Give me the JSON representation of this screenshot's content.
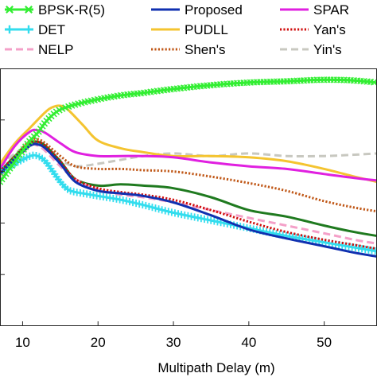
{
  "chart_data": {
    "type": "line",
    "title": "",
    "xlabel": "Multipath Delay (m)",
    "ylabel": "",
    "xlim": [
      7,
      57
    ],
    "ylim": [
      0,
      100
    ],
    "x_ticks": [
      10,
      20,
      30,
      40,
      50
    ],
    "x_tick_labels": [
      "10",
      "20",
      "30",
      "40",
      "50"
    ],
    "grid": false,
    "legend_position": "top",
    "series": [
      {
        "name": "BPSK-R(5)",
        "color": "#33ee33",
        "style": "solid-x-markers",
        "x": [
          7,
          8,
          9,
          10,
          11,
          12,
          13,
          14,
          15,
          17,
          20,
          23,
          26,
          30,
          35,
          40,
          45,
          50,
          54,
          57
        ],
        "y": [
          56,
          60,
          64,
          68,
          72,
          75,
          79,
          82,
          84,
          86,
          88,
          89.5,
          90.5,
          92,
          93.5,
          94.5,
          95,
          95.6,
          95.3,
          94.5
        ]
      },
      {
        "name": "DET",
        "color": "#33ddee",
        "style": "solid-plus-markers",
        "x": [
          7,
          9,
          11,
          12,
          13,
          14,
          15,
          16,
          17,
          18,
          20,
          23,
          26,
          30,
          35,
          40,
          45,
          50,
          54,
          57
        ],
        "y": [
          60,
          63,
          66,
          66,
          64,
          60,
          56,
          53,
          52,
          51.5,
          50.5,
          49,
          47,
          44,
          41,
          38,
          35,
          32.5,
          30.5,
          29
        ]
      },
      {
        "name": "NELP",
        "color": "#f4a0c8",
        "style": "dashed",
        "x": [
          7,
          9,
          11,
          12,
          13,
          15,
          17,
          20,
          23,
          26,
          30,
          35,
          40,
          45,
          50,
          54,
          57
        ],
        "y": [
          58,
          64,
          70,
          70,
          68,
          62,
          57,
          53,
          51,
          50,
          48,
          45,
          42,
          39,
          36,
          33.5,
          32
        ]
      },
      {
        "name": "Proposed",
        "color": "#1030b0",
        "style": "solid",
        "x": [
          7,
          9,
          11,
          12,
          13,
          15,
          17,
          20,
          23,
          26,
          30,
          35,
          40,
          45,
          50,
          54,
          57
        ],
        "y": [
          59,
          65,
          70,
          70.5,
          69,
          63,
          56,
          52.5,
          51.5,
          50.5,
          48,
          43,
          37.5,
          34,
          31,
          28.5,
          27
        ]
      },
      {
        "name": "PUDLL",
        "color": "#f4c430",
        "style": "solid",
        "x": [
          7,
          9,
          11,
          13,
          14,
          15,
          16,
          18,
          20,
          23,
          26,
          30,
          35,
          40,
          45,
          50,
          54,
          57
        ],
        "y": [
          63,
          71,
          77,
          83,
          85,
          85.5,
          84,
          78,
          72,
          69,
          67.5,
          66,
          66,
          65.5,
          64,
          61,
          58,
          56
        ]
      },
      {
        "name": "Shen's",
        "color": "#c05818",
        "style": "dotted",
        "x": [
          7,
          9,
          11,
          12,
          13,
          15,
          17,
          20,
          23,
          26,
          30,
          35,
          40,
          45,
          50,
          54,
          57
        ],
        "y": [
          59,
          66,
          72,
          72.5,
          71,
          66,
          62,
          61,
          61,
          60.5,
          60,
          58,
          55.5,
          52.5,
          48.5,
          46,
          44.5
        ]
      },
      {
        "name": "SPAR",
        "color": "#e020e0",
        "style": "solid",
        "x": [
          7,
          9,
          11,
          12,
          13,
          15,
          17,
          20,
          23,
          26,
          30,
          35,
          40,
          45,
          50,
          54,
          57
        ],
        "y": [
          61,
          70,
          75.5,
          76,
          75,
          71,
          67.5,
          66,
          66,
          66,
          65.5,
          63.5,
          62,
          61,
          59,
          57.5,
          56.5
        ]
      },
      {
        "name": "Yan's",
        "color": "#d01010",
        "style": "dotted",
        "x": [
          7,
          9,
          11,
          12,
          13,
          15,
          17,
          20,
          23,
          26,
          30,
          35,
          40,
          45,
          50,
          54,
          57
        ],
        "y": [
          60,
          66,
          71,
          71.5,
          70,
          64,
          57,
          53.5,
          52,
          51,
          49,
          45,
          40.5,
          36.5,
          33.5,
          31.5,
          30
        ]
      },
      {
        "name": "Yin's",
        "color": "#c8c8c0",
        "style": "dashed",
        "x": [
          7,
          9,
          11,
          12,
          13,
          15,
          17,
          20,
          23,
          26,
          30,
          35,
          40,
          45,
          50,
          54,
          57
        ],
        "y": [
          62,
          67,
          70.5,
          70.5,
          69,
          64.5,
          62,
          63,
          64.5,
          66,
          67,
          66,
          67,
          66,
          66,
          66.5,
          67
        ]
      },
      {
        "name": "",
        "color": "#1f7a1f",
        "style": "solid",
        "x": [
          7,
          9,
          11,
          12,
          13,
          15,
          17,
          20,
          23,
          26,
          30,
          35,
          40,
          45,
          50,
          54,
          57
        ],
        "y": [
          60,
          66,
          71,
          71.5,
          70,
          64,
          57,
          54.5,
          55,
          54.5,
          53.5,
          50,
          45,
          42.5,
          39,
          36.5,
          35
        ]
      }
    ]
  }
}
